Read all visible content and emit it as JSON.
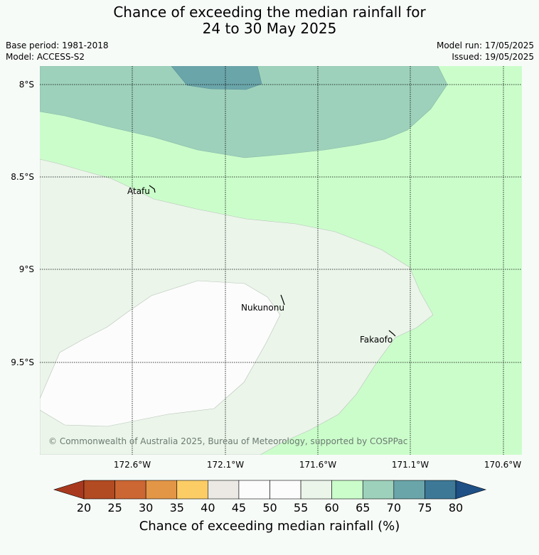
{
  "title": {
    "line1": "Chance of exceeding the median rainfall for",
    "line2": "24 to 30 May 2025"
  },
  "info": {
    "base_period": "Base period: 1981-2018",
    "model": "Model: ACCESS-S2",
    "model_run": "Model run: 17/05/2025",
    "issued": "Issued: 19/05/2025"
  },
  "map": {
    "latitude_labels": [
      "8°S",
      "8.5°S",
      "9°S",
      "9.5°S"
    ],
    "longitude_labels": [
      "172.6°W",
      "172.1°W",
      "171.6°W",
      "171.1°W",
      "170.6°W"
    ],
    "places": [
      "Atafu",
      "Nukunonu",
      "Fakaofo"
    ],
    "copyright": "© Commonwealth of Australia 2025, Bureau of Meteorology, supported by COSPPac"
  },
  "colorbar": {
    "ticks": [
      "20",
      "25",
      "30",
      "35",
      "40",
      "45",
      "50",
      "55",
      "60",
      "65",
      "70",
      "75",
      "80"
    ],
    "label": "Chance of exceeding median rainfall (%)",
    "colors": [
      "#a8391f",
      "#b24a22",
      "#cc6633",
      "#e39646",
      "#fdcd65",
      "#ece9e5",
      "#fbfcfb",
      "#fbfcfb",
      "#ebf5ea",
      "#cbfdcb",
      "#9dd1bb",
      "#6aa5aa",
      "#3d7897",
      "#1e4f85"
    ]
  }
}
